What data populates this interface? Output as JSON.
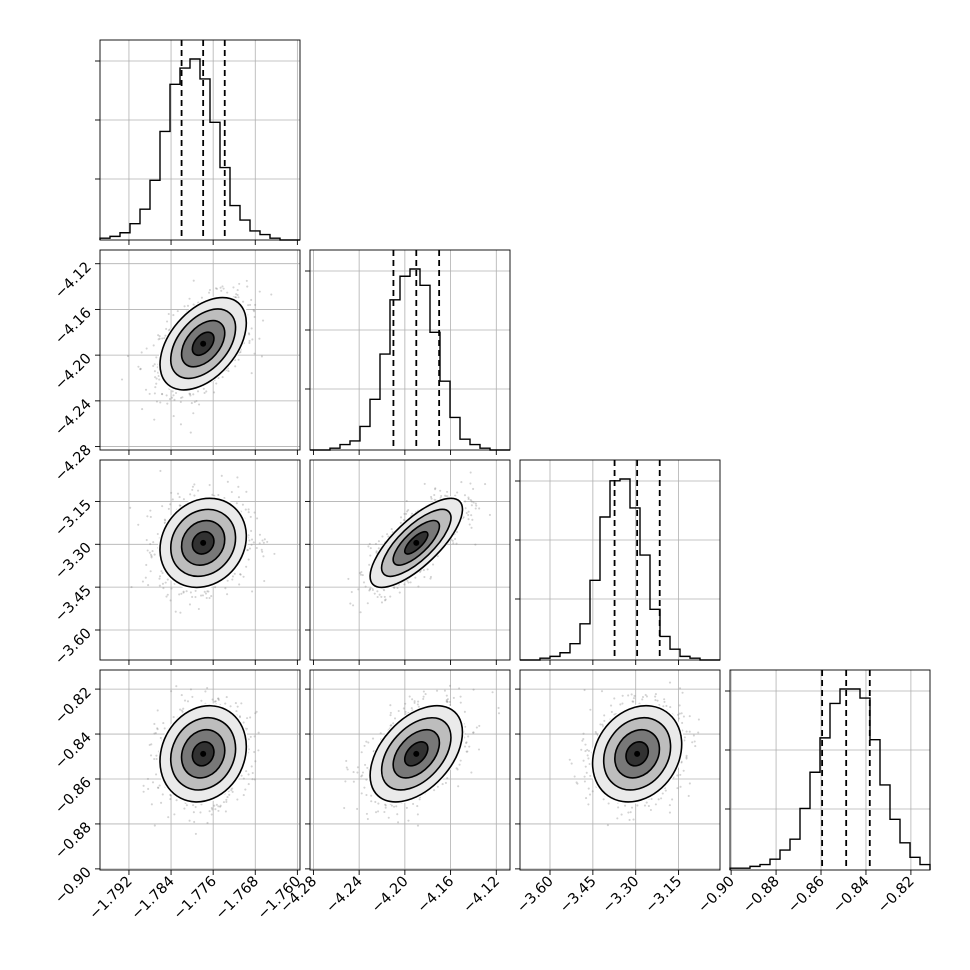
{
  "chart_data": {
    "type": "corner",
    "parameters": [
      {
        "index": 0,
        "range": [
          -1.7975,
          -1.7595
        ],
        "center": -1.7779,
        "sigma": 0.0041,
        "quantiles": [
          -1.782,
          -1.7779,
          -1.7738
        ],
        "ticks": [
          -1.792,
          -1.784,
          -1.776,
          -1.768,
          -1.76
        ],
        "tick_labels": [
          "−1.792",
          "−1.784",
          "−1.776",
          "−1.768",
          "−1.760"
        ]
      },
      {
        "index": 1,
        "range": [
          -4.283,
          -4.108
        ],
        "center": -4.19,
        "sigma": 0.0202,
        "quantiles": [
          -4.21,
          -4.19,
          -4.17
        ],
        "ticks": [
          -4.28,
          -4.24,
          -4.2,
          -4.16,
          -4.12
        ],
        "tick_labels": [
          "−4.28",
          "−4.24",
          "−4.20",
          "−4.16",
          "−4.12"
        ]
      },
      {
        "index": 2,
        "range": [
          -3.705,
          -3.005
        ],
        "center": -3.295,
        "sigma": 0.078,
        "quantiles": [
          -3.374,
          -3.295,
          -3.216
        ],
        "ticks": [
          -3.6,
          -3.45,
          -3.3,
          -3.15
        ],
        "tick_labels": [
          "−3.60",
          "−3.45",
          "−3.30",
          "−3.15"
        ]
      },
      {
        "index": 3,
        "range": [
          -0.9005,
          -0.8115
        ],
        "center": -0.8488,
        "sigma": 0.0107,
        "quantiles": [
          -0.8595,
          -0.8488,
          -0.8383
        ],
        "ticks": [
          -0.9,
          -0.88,
          -0.86,
          -0.84,
          -0.82
        ],
        "tick_labels": [
          "−0.90",
          "−0.88",
          "−0.86",
          "−0.84",
          "−0.82"
        ]
      }
    ],
    "correlations": [
      {
        "x": 0,
        "y": 1,
        "rho": 0.45
      },
      {
        "x": 0,
        "y": 2,
        "rho": 0.15
      },
      {
        "x": 1,
        "y": 2,
        "rho": 0.75
      },
      {
        "x": 0,
        "y": 3,
        "rho": 0.15
      },
      {
        "x": 1,
        "y": 3,
        "rho": 0.45
      },
      {
        "x": 2,
        "y": 3,
        "rho": 0.2
      }
    ],
    "histograms": [
      {
        "parameter": 0,
        "counts": [
          1,
          2,
          4,
          9,
          17,
          33,
          60,
          86,
          95,
          100,
          89,
          65,
          40,
          19,
          11,
          5,
          3,
          1,
          0,
          0
        ]
      },
      {
        "parameter": 1,
        "counts": [
          0,
          0,
          1,
          3,
          5,
          13,
          28,
          53,
          83,
          96,
          100,
          91,
          65,
          38,
          18,
          6,
          3,
          1,
          0,
          0
        ]
      },
      {
        "parameter": 2,
        "counts": [
          0,
          0,
          1,
          2,
          4,
          9,
          20,
          44,
          79,
          99,
          100,
          84,
          58,
          28,
          13,
          6,
          2,
          1,
          0,
          0
        ]
      },
      {
        "parameter": 3,
        "counts": [
          1,
          1,
          2,
          3,
          6,
          11,
          17,
          34,
          54,
          73,
          92,
          100,
          100,
          95,
          72,
          47,
          28,
          15,
          7,
          3
        ]
      }
    ],
    "contour_levels_sigma": [
      0.5,
      1.0,
      1.5,
      2.0
    ],
    "quantile_lines": "dashed",
    "grid": true,
    "legend": "none",
    "title": "",
    "xlabel": "",
    "ylabel": ""
  }
}
